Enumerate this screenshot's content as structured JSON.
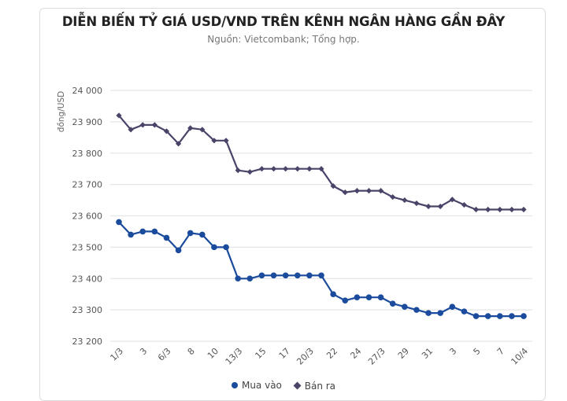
{
  "chart_data": {
    "type": "line",
    "title": "DIỄN BIẾN TỶ GIÁ USD/VND TRÊN KÊNH NGÂN HÀNG GẦN ĐÂY",
    "subtitle": "Nguồn: Vietcombank; Tổng hợp.",
    "xlabel": "",
    "ylabel": "đồng/USD",
    "ylim": [
      23200,
      24000
    ],
    "yticks": [
      24000,
      23900,
      23800,
      23700,
      23600,
      23500,
      23400,
      23300,
      23200
    ],
    "ytick_labels": [
      "24 000",
      "23 900",
      "23 800",
      "23 700",
      "23 600",
      "23 500",
      "23 400",
      "23 300",
      "23 200"
    ],
    "grid": true,
    "legend_position": "bottom",
    "categories": [
      "1/3",
      "",
      "3",
      "",
      "6/3",
      "",
      "8",
      "",
      "10",
      "",
      "13/3",
      "",
      "15",
      "",
      "17",
      "",
      "20/3",
      "",
      "22",
      "",
      "24",
      "",
      "27/3",
      "",
      "29",
      "",
      "31",
      "",
      "3",
      "",
      "5",
      "",
      "7",
      "",
      "10/4"
    ],
    "series": [
      {
        "name": "Mua vào",
        "color": "#1a4b9c",
        "marker": "circle",
        "values": [
          23580,
          23540,
          23550,
          23550,
          23530,
          23490,
          23545,
          23540,
          23500,
          23500,
          23400,
          23400,
          23410,
          23410,
          23410,
          23410,
          23410,
          23410,
          23350,
          23330,
          23340,
          23340,
          23340,
          23320,
          23310,
          23300,
          23290,
          23290,
          23310,
          23295,
          23280,
          23280,
          23280,
          23280,
          23280
        ]
      },
      {
        "name": "Bán ra",
        "color": "#4a4468",
        "marker": "diamond",
        "values": [
          23920,
          23875,
          23890,
          23890,
          23870,
          23830,
          23880,
          23875,
          23840,
          23840,
          23745,
          23740,
          23750,
          23750,
          23750,
          23750,
          23750,
          23750,
          23695,
          23675,
          23680,
          23680,
          23680,
          23660,
          23650,
          23640,
          23630,
          23630,
          23652,
          23635,
          23620,
          23620,
          23620,
          23620,
          23620
        ]
      }
    ]
  },
  "legend": {
    "items": [
      {
        "label": "Mua vào",
        "color": "#1a4b9c"
      },
      {
        "label": "Bán ra",
        "color": "#4a4468"
      }
    ]
  }
}
